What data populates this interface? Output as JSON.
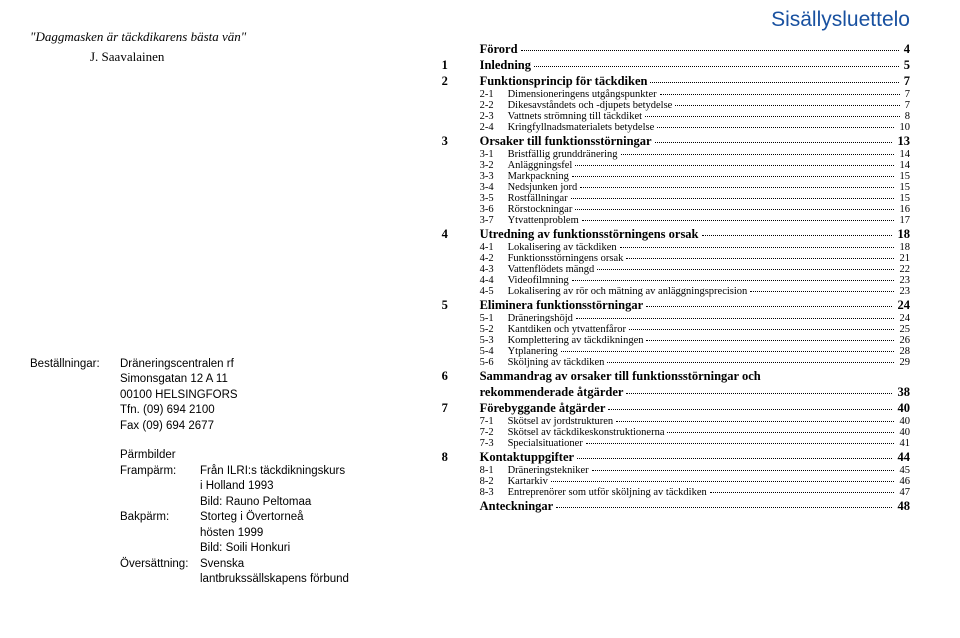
{
  "quote": {
    "line": "\"Daggmasken är täckdikarens bästa vän\"",
    "author": "J. Saavalainen"
  },
  "order": {
    "label_bestallningar": "Beställningar:",
    "org": "Dräneringscentralen rf",
    "addr1": "Simonsgatan 12 A 11",
    "addr2": "00100 HELSINGFORS",
    "tel": "Tfn. (09) 694 2100",
    "fax": "Fax (09) 694 2677",
    "parmbilder": "Pärmbilder",
    "framparm_label": "Frampärm:",
    "framparm_l1": "Från ILRI:s täckdikningskurs",
    "framparm_l2": "i Holland 1993",
    "framparm_l3": "Bild: Rauno Peltomaa",
    "bakparm_label": "Bakpärm:",
    "bakparm_l1": "Storteg i Övertorneå",
    "bakparm_l2": "hösten 1999",
    "bakparm_l3": "Bild: Soili Honkuri",
    "oversattning_label": "Översättning:",
    "oversattning_l1": "Svenska",
    "oversattning_l2": "lantbrukssällskapens förbund"
  },
  "toc_title": "Sisällysluettelo",
  "toc": [
    {
      "type": "section",
      "num": "",
      "label": "Förord",
      "page": "4"
    },
    {
      "type": "section",
      "num": "1",
      "label": "Inledning",
      "page": "5"
    },
    {
      "type": "section",
      "num": "2",
      "label": "Funktionsprincip för täckdiken",
      "page": "7"
    },
    {
      "type": "sub",
      "num": "2-1",
      "label": "Dimensioneringens utgångspunkter",
      "page": "7"
    },
    {
      "type": "sub",
      "num": "2-2",
      "label": "Dikesavståndets och -djupets betydelse",
      "page": "7"
    },
    {
      "type": "sub",
      "num": "2-3",
      "label": "Vattnets strömning till täckdiket",
      "page": "8"
    },
    {
      "type": "sub",
      "num": "2-4",
      "label": "Kringfyllnadsmaterialets betydelse",
      "page": "10"
    },
    {
      "type": "section",
      "num": "3",
      "label": "Orsaker till funktionsstörningar",
      "page": "13"
    },
    {
      "type": "sub",
      "num": "3-1",
      "label": "Bristfällig grunddränering",
      "page": "14"
    },
    {
      "type": "sub",
      "num": "3-2",
      "label": "Anläggningsfel",
      "page": "14"
    },
    {
      "type": "sub",
      "num": "3-3",
      "label": "Markpackning",
      "page": "15"
    },
    {
      "type": "sub",
      "num": "3-4",
      "label": "Nedsjunken jord",
      "page": "15"
    },
    {
      "type": "sub",
      "num": "3-5",
      "label": "Rostfällningar",
      "page": "15"
    },
    {
      "type": "sub",
      "num": "3-6",
      "label": "Rörstockningar",
      "page": "16"
    },
    {
      "type": "sub",
      "num": "3-7",
      "label": "Ytvattenproblem",
      "page": "17"
    },
    {
      "type": "section",
      "num": "4",
      "label": "Utredning av funktionsstörningens orsak",
      "page": "18"
    },
    {
      "type": "sub",
      "num": "4-1",
      "label": "Lokalisering av täckdiken",
      "page": "18"
    },
    {
      "type": "sub",
      "num": "4-2",
      "label": "Funktionsstörningens orsak",
      "page": "21"
    },
    {
      "type": "sub",
      "num": "4-3",
      "label": "Vattenflödets mängd",
      "page": "22"
    },
    {
      "type": "sub",
      "num": "4-4",
      "label": "Videofilmning",
      "page": "23"
    },
    {
      "type": "sub",
      "num": "4-5",
      "label": "Lokalisering av rör och mätning av anläggningsprecision",
      "page": "23"
    },
    {
      "type": "section",
      "num": "5",
      "label": "Eliminera funktionsstörningar",
      "page": "24"
    },
    {
      "type": "sub",
      "num": "5-1",
      "label": "Dräneringshöjd",
      "page": "24"
    },
    {
      "type": "sub",
      "num": "5-2",
      "label": "Kantdiken och ytvattenfåror",
      "page": "25"
    },
    {
      "type": "sub",
      "num": "5-3",
      "label": "Komplettering av täckdikningen",
      "page": "26"
    },
    {
      "type": "sub",
      "num": "5-4",
      "label": "Ytplanering",
      "page": "28"
    },
    {
      "type": "sub",
      "num": "5-6",
      "label": "Sköljning av täckdiken",
      "page": "29"
    },
    {
      "type": "section_wrap",
      "num": "6",
      "label_l1": "Sammandrag av orsaker till funktionsstörningar och",
      "label_l2": "rekommenderade åtgärder",
      "page": "38"
    },
    {
      "type": "section",
      "num": "7",
      "label": "Förebyggande åtgärder",
      "page": "40"
    },
    {
      "type": "sub",
      "num": "7-1",
      "label": "Skötsel av jordstrukturen",
      "page": "40"
    },
    {
      "type": "sub",
      "num": "7-2",
      "label": "Skötsel av täckdikeskonstruktionerna",
      "page": "40"
    },
    {
      "type": "sub",
      "num": "7-3",
      "label": "Specialsituationer",
      "page": "41"
    },
    {
      "type": "section",
      "num": "8",
      "label": "Kontaktuppgifter",
      "page": "44"
    },
    {
      "type": "sub",
      "num": "8-1",
      "label": "Dräneringstekniker",
      "page": "45"
    },
    {
      "type": "sub",
      "num": "8-2",
      "label": "Kartarkiv",
      "page": "46"
    },
    {
      "type": "sub",
      "num": "8-3",
      "label": "Entreprenörer som utför sköljning av täckdiken",
      "page": "47"
    },
    {
      "type": "section",
      "num": "",
      "label": "Anteckningar",
      "page": "48"
    }
  ]
}
